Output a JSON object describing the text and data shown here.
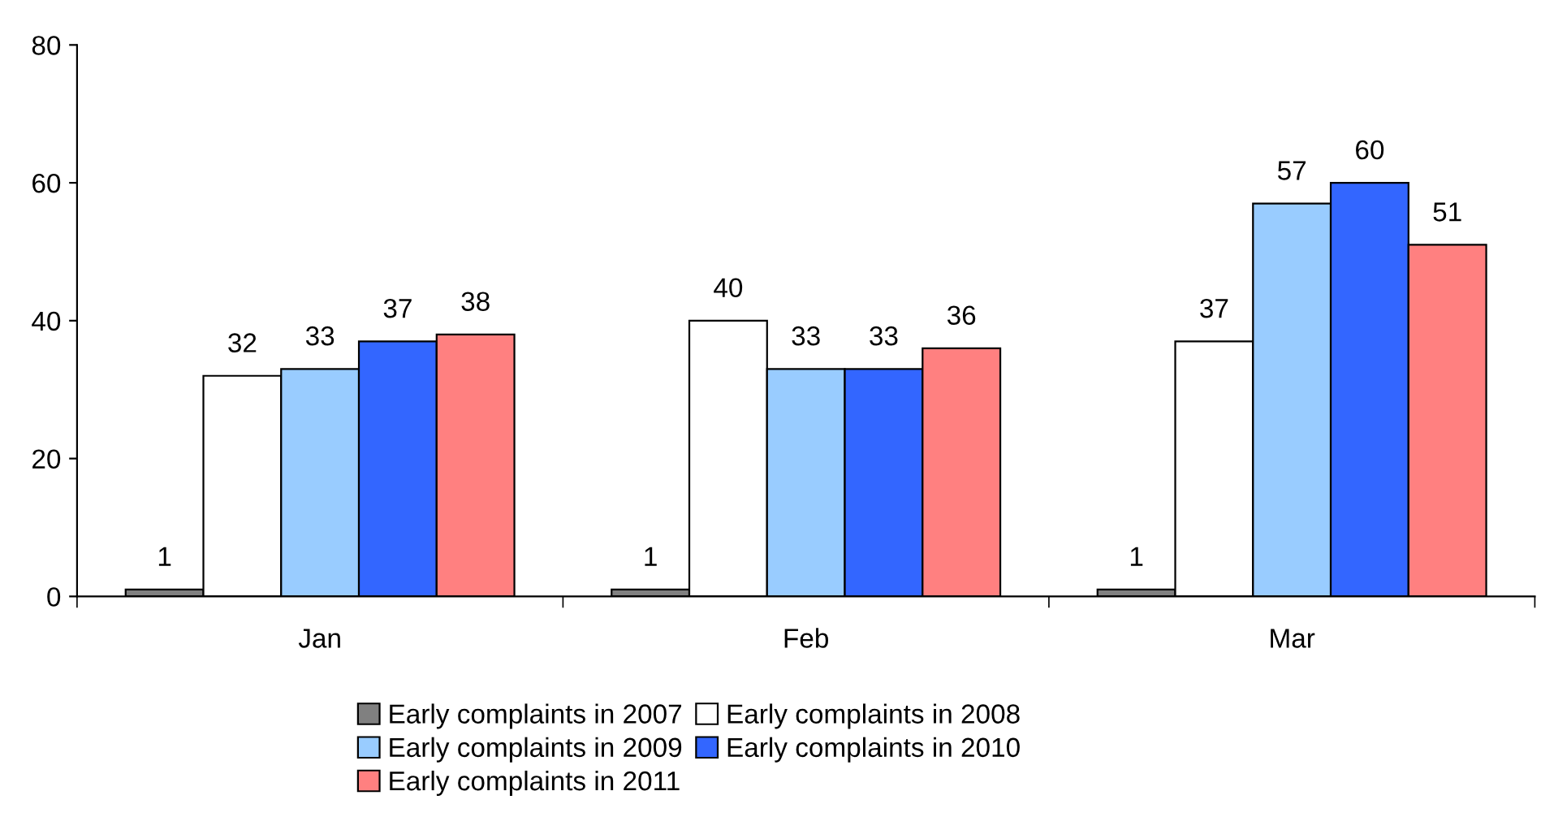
{
  "chart_data": {
    "type": "bar",
    "categories": [
      "Jan",
      "Feb",
      "Mar"
    ],
    "series": [
      {
        "name": "Early complaints in 2007",
        "color": "#808080",
        "values": [
          1,
          1,
          1
        ]
      },
      {
        "name": "Early complaints in 2008",
        "color": "#ffffff",
        "values": [
          32,
          40,
          37
        ]
      },
      {
        "name": "Early complaints in 2009",
        "color": "#99ccff",
        "values": [
          33,
          33,
          57
        ]
      },
      {
        "name": "Early complaints in 2010",
        "color": "#3366ff",
        "values": [
          37,
          33,
          60
        ]
      },
      {
        "name": "Early complaints in 2011",
        "color": "#ff8080",
        "values": [
          38,
          36,
          51
        ]
      }
    ],
    "ylim": [
      0,
      80
    ],
    "yticks": [
      0,
      20,
      40,
      60,
      80
    ],
    "grid": false,
    "legend": "bottom",
    "data_labels": true
  }
}
